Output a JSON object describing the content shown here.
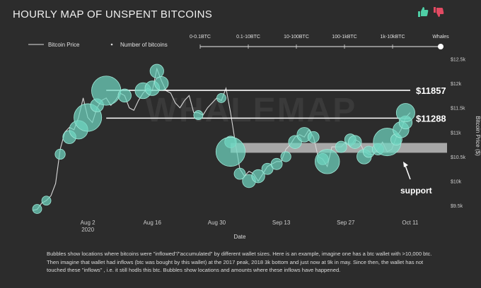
{
  "header": {
    "title": "HOURLY MAP OF UNSPENT BITCOINS"
  },
  "icons": {
    "like": "thumbs-up-icon",
    "dislike": "thumbs-down-icon"
  },
  "colors": {
    "background": "#2c2c2c",
    "bubble": "#6fd6c0",
    "like": "#4fcfa6",
    "dislike": "#e24a62",
    "support_band": "#bdbdbd"
  },
  "legend": {
    "price_label": "Bitcoin Price",
    "count_label": "Number of bitcoins"
  },
  "wallet_slider": {
    "labels": [
      "0-0.1BTC",
      "0.1-10BTC",
      "10-100BTC",
      "100-1kBTC",
      "1k-10kBTC",
      "Whales"
    ],
    "selected": "Whales"
  },
  "watermark": "WHALEMAP",
  "caption": "Bubbles show locations where bitcoins were \"inflowed\"/\"accumulated\" by different wallet sizes. Here is an example, imagine one has a btc wallet with >10,000 btc. Then imagine that wallet had inflows (btc was bought by this wallet) at the 2017 peak, 2018 3k bottom and just now at 9k in may. Since then, the wallet has not touched these \"inflows\" , i.e. it still hodls this btc. Bubbles show locations and amounts where these inflows have happened.",
  "chart_data": {
    "type": "scatter",
    "title": "HOURLY MAP OF UNSPENT BITCOINS",
    "xlabel": "Date",
    "ylabel": "Bitcoin Price ($)",
    "x_range": [
      "2020-07-21",
      "2020-10-19"
    ],
    "ylim": [
      9300,
      12550
    ],
    "y_ticks": [
      {
        "value": 9500,
        "label": "$9.5k"
      },
      {
        "value": 10000,
        "label": "$10k"
      },
      {
        "value": 10500,
        "label": "$10.5k"
      },
      {
        "value": 11000,
        "label": "$11k"
      },
      {
        "value": 11500,
        "label": "$11.5k"
      },
      {
        "value": 12000,
        "label": "$12k"
      },
      {
        "value": 12500,
        "label": "$12.5k"
      }
    ],
    "x_ticks": [
      {
        "date": "2020-08-02",
        "label": "Aug 2",
        "sublabel": "2020"
      },
      {
        "date": "2020-08-16",
        "label": "Aug 16",
        "sublabel": ""
      },
      {
        "date": "2020-08-30",
        "label": "Aug 30",
        "sublabel": ""
      },
      {
        "date": "2020-09-13",
        "label": "Sep 13",
        "sublabel": ""
      },
      {
        "date": "2020-09-27",
        "label": "Sep 27",
        "sublabel": ""
      },
      {
        "date": "2020-10-11",
        "label": "Oct 11",
        "sublabel": ""
      }
    ],
    "grid": false,
    "legend_position": "top-left",
    "series": [
      {
        "name": "Bitcoin Price",
        "type": "line",
        "points": [
          [
            "2020-07-21",
            9400
          ],
          [
            "2020-07-22",
            9420
          ],
          [
            "2020-07-23",
            9550
          ],
          [
            "2020-07-24",
            9600
          ],
          [
            "2020-07-25",
            9700
          ],
          [
            "2020-07-26",
            9950
          ],
          [
            "2020-07-27",
            10650
          ],
          [
            "2020-07-28",
            11000
          ],
          [
            "2020-07-29",
            11100
          ],
          [
            "2020-07-30",
            11050
          ],
          [
            "2020-07-31",
            11300
          ],
          [
            "2020-08-01",
            11700
          ],
          [
            "2020-08-02",
            11300
          ],
          [
            "2020-08-03",
            11200
          ],
          [
            "2020-08-04",
            11500
          ],
          [
            "2020-08-05",
            11650
          ],
          [
            "2020-08-06",
            11700
          ],
          [
            "2020-08-07",
            11550
          ],
          [
            "2020-08-08",
            11650
          ],
          [
            "2020-08-09",
            11800
          ],
          [
            "2020-08-10",
            11750
          ],
          [
            "2020-08-11",
            11500
          ],
          [
            "2020-08-12",
            11450
          ],
          [
            "2020-08-13",
            11650
          ],
          [
            "2020-08-14",
            11800
          ],
          [
            "2020-08-15",
            11900
          ],
          [
            "2020-08-16",
            11850
          ],
          [
            "2020-08-17",
            12300
          ],
          [
            "2020-08-18",
            12050
          ],
          [
            "2020-08-19",
            11850
          ],
          [
            "2020-08-20",
            11800
          ],
          [
            "2020-08-21",
            11600
          ],
          [
            "2020-08-22",
            11500
          ],
          [
            "2020-08-23",
            11650
          ],
          [
            "2020-08-24",
            11750
          ],
          [
            "2020-08-25",
            11400
          ],
          [
            "2020-08-26",
            11400
          ],
          [
            "2020-08-27",
            11350
          ],
          [
            "2020-08-28",
            11500
          ],
          [
            "2020-08-29",
            11600
          ],
          [
            "2020-08-30",
            11700
          ],
          [
            "2020-08-31",
            11650
          ],
          [
            "2020-09-01",
            11900
          ],
          [
            "2020-09-02",
            11400
          ],
          [
            "2020-09-03",
            10800
          ],
          [
            "2020-09-04",
            10250
          ],
          [
            "2020-09-05",
            10100
          ],
          [
            "2020-09-06",
            10200
          ],
          [
            "2020-09-07",
            10150
          ],
          [
            "2020-09-08",
            10000
          ],
          [
            "2020-09-09",
            10150
          ],
          [
            "2020-09-10",
            10300
          ],
          [
            "2020-09-11",
            10350
          ],
          [
            "2020-09-12",
            10400
          ],
          [
            "2020-09-13",
            10400
          ],
          [
            "2020-09-14",
            10650
          ],
          [
            "2020-09-15",
            10750
          ],
          [
            "2020-09-16",
            10900
          ],
          [
            "2020-09-17",
            10950
          ],
          [
            "2020-09-18",
            10900
          ],
          [
            "2020-09-19",
            11050
          ],
          [
            "2020-09-20",
            10900
          ],
          [
            "2020-09-21",
            10500
          ],
          [
            "2020-09-22",
            10450
          ],
          [
            "2020-09-23",
            10300
          ],
          [
            "2020-09-24",
            10700
          ],
          [
            "2020-09-25",
            10700
          ],
          [
            "2020-09-26",
            10700
          ],
          [
            "2020-09-27",
            10800
          ],
          [
            "2020-09-28",
            10700
          ],
          [
            "2020-09-29",
            10850
          ],
          [
            "2020-09-30",
            10800
          ],
          [
            "2020-10-01",
            10600
          ],
          [
            "2020-10-02",
            10550
          ],
          [
            "2020-10-03",
            10550
          ],
          [
            "2020-10-04",
            10650
          ],
          [
            "2020-10-05",
            10800
          ],
          [
            "2020-10-06",
            10600
          ],
          [
            "2020-10-07",
            10650
          ],
          [
            "2020-10-08",
            10900
          ],
          [
            "2020-10-09",
            11050
          ],
          [
            "2020-10-10",
            11300
          ],
          [
            "2020-10-11",
            11400
          ]
        ]
      },
      {
        "name": "Number of bitcoins",
        "type": "bubble",
        "points": [
          [
            "2020-07-22",
            9430,
            1
          ],
          [
            "2020-07-24",
            9600,
            1
          ],
          [
            "2020-07-27",
            10550,
            1.2
          ],
          [
            "2020-07-29",
            10900,
            2
          ],
          [
            "2020-07-31",
            11050,
            4
          ],
          [
            "2020-08-02",
            11300,
            9
          ],
          [
            "2020-08-04",
            11550,
            2
          ],
          [
            "2020-08-06",
            11850,
            10
          ],
          [
            "2020-08-10",
            11750,
            2
          ],
          [
            "2020-08-14",
            11850,
            3
          ],
          [
            "2020-08-16",
            11900,
            2.5
          ],
          [
            "2020-08-17",
            12250,
            2.2
          ],
          [
            "2020-08-18",
            12000,
            2.2
          ],
          [
            "2020-08-26",
            11350,
            1
          ],
          [
            "2020-08-31",
            11700,
            1
          ],
          [
            "2020-09-02",
            10800,
            1.6
          ],
          [
            "2020-09-02",
            10600,
            10
          ],
          [
            "2020-09-04",
            10150,
            1.5
          ],
          [
            "2020-09-06",
            10000,
            2
          ],
          [
            "2020-09-08",
            10100,
            2
          ],
          [
            "2020-09-10",
            10250,
            1.5
          ],
          [
            "2020-09-12",
            10350,
            1.5
          ],
          [
            "2020-09-14",
            10500,
            1.2
          ],
          [
            "2020-09-16",
            10800,
            2
          ],
          [
            "2020-09-18",
            10950,
            2.5
          ],
          [
            "2020-09-20",
            10900,
            1.5
          ],
          [
            "2020-09-22",
            10450,
            1.5
          ],
          [
            "2020-09-23",
            10400,
            7
          ],
          [
            "2020-09-26",
            10700,
            1.5
          ],
          [
            "2020-09-28",
            10850,
            1.5
          ],
          [
            "2020-09-29",
            10800,
            2
          ],
          [
            "2020-10-01",
            10500,
            2.5
          ],
          [
            "2020-10-02",
            10600,
            1.5
          ],
          [
            "2020-10-04",
            10650,
            1.5
          ],
          [
            "2020-10-06",
            10800,
            9
          ],
          [
            "2020-10-08",
            10850,
            1.5
          ],
          [
            "2020-10-09",
            11050,
            3
          ],
          [
            "2020-10-10",
            11200,
            2
          ],
          [
            "2020-10-10",
            11400,
            4
          ]
        ]
      }
    ],
    "annotations": [
      {
        "type": "hline",
        "value": 11857,
        "label": "$11857"
      },
      {
        "type": "hline",
        "value": 11288,
        "label": "$11288"
      },
      {
        "type": "band",
        "from": 10580,
        "to": 10780,
        "start": "2020-09-02",
        "end": "2020-10-19",
        "label": "support"
      }
    ]
  }
}
